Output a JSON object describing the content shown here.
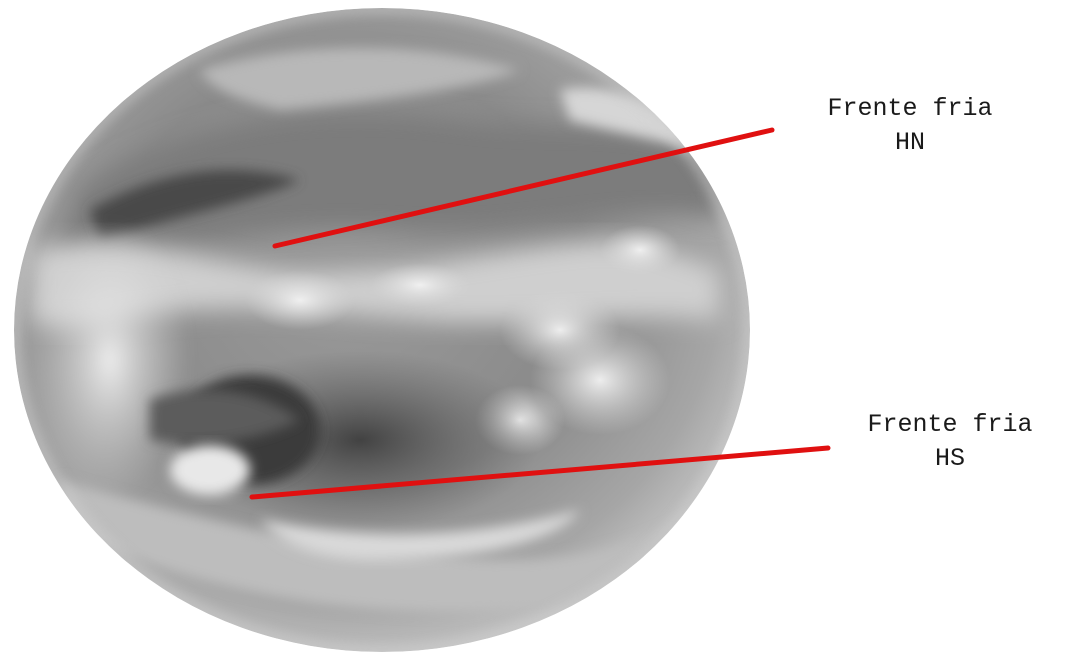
{
  "annotations": {
    "north": {
      "line1": "Frente fria",
      "line2": "HN"
    },
    "south": {
      "line1": "Frente fria",
      "line2": "HS"
    }
  },
  "colors": {
    "front_line": "#e01010",
    "background": "#ffffff",
    "label_text": "#1a1a1a"
  },
  "image": {
    "subject": "satellite-earth-disk-grayscale",
    "icon": "earth-globe-icon"
  }
}
